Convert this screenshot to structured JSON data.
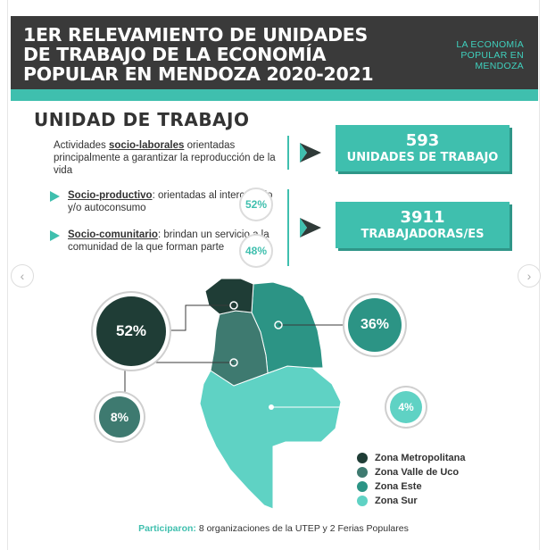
{
  "header": {
    "title": "1er relevamiento de unidades de trabajo de la economía popular en Mendoza 2020-2021",
    "brand": "La economía popular en Mendoza"
  },
  "section": {
    "title": "UNIDAD  DE TRABAJO"
  },
  "description": {
    "lead": "Actividades ",
    "emphasis": "socio-laborales",
    "rest": " orientadas principalmente a garantizar la reproducción de la vida"
  },
  "categories": [
    {
      "name": "Socio-productivo",
      "text": ": orientadas al intercambio y/o autoconsumo",
      "percent": "52%"
    },
    {
      "name": "Socio-comunitario",
      "text": ": brindan un servicio a la comunidad de la que forman parte",
      "percent": "48%"
    }
  ],
  "stats": [
    {
      "value": "593",
      "label": "Unidades de trabajo"
    },
    {
      "value": "3911",
      "label": "Trabajadoras/es"
    }
  ],
  "regions": [
    {
      "name": "Zona Metropolitana",
      "percent": "52%",
      "color": "#1f3d36"
    },
    {
      "name": "Zona Valle de Uco",
      "percent": "8%",
      "color": "#3e7a70"
    },
    {
      "name": "Zona Este",
      "percent": "36%",
      "color": "#2c9485"
    },
    {
      "name": "Zona Sur",
      "percent": "4%",
      "color": "#5fd2c4"
    }
  ],
  "footer": {
    "lead": "Participaron:",
    "text": " 8 organizaciones de la UTEP y 2 Ferias Populares"
  },
  "nav": {
    "prev": "‹",
    "next": "›"
  }
}
